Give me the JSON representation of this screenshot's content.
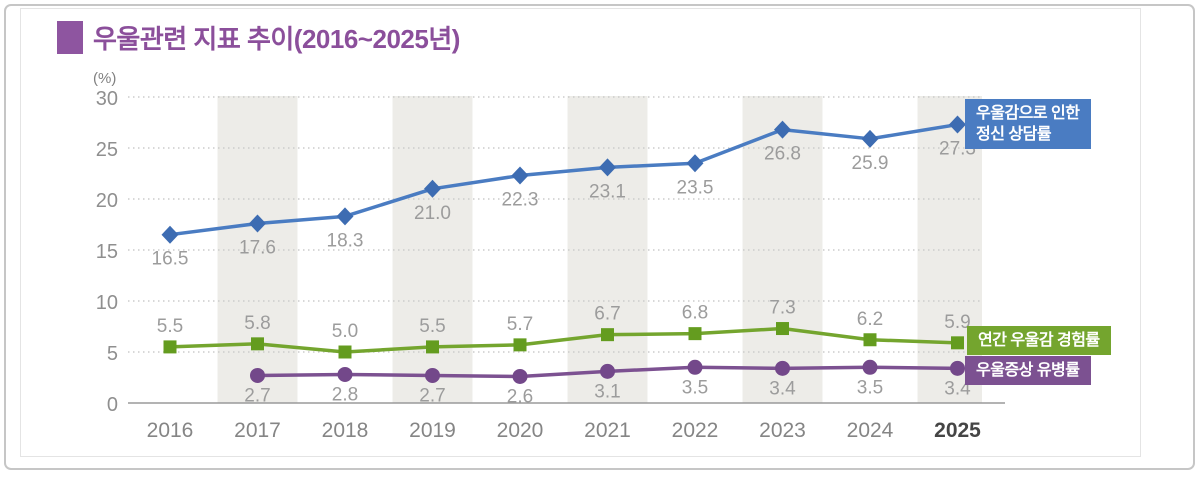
{
  "title": {
    "text": "우울관련 지표 추이(2016~2025년)"
  },
  "axis": {
    "unit_label": "(%)",
    "x_labels": [
      "2016",
      "2017",
      "2018",
      "2019",
      "2020",
      "2021",
      "2022",
      "2023",
      "2024",
      "2025"
    ],
    "y_tick_labels": [
      "0",
      "5",
      "10",
      "15",
      "20",
      "25",
      "30"
    ]
  },
  "chart_data": {
    "type": "line",
    "title": "우울관련 지표 추이(2016~2025년)",
    "unit_label": "(%)",
    "categories": [
      "2016",
      "2017",
      "2018",
      "2019",
      "2020",
      "2021",
      "2022",
      "2023",
      "2024",
      "2025"
    ],
    "ylim": [
      0,
      30
    ],
    "yticks": [
      0,
      5,
      10,
      15,
      20,
      25,
      30
    ],
    "grid": "horizontal-dotted",
    "legend_position": "right-of-last-point",
    "background_bands_on": [
      "2017",
      "2019",
      "2021",
      "2023",
      "2025"
    ],
    "emphasized_x_label": "2025",
    "series": [
      {
        "name": "우울감으로 인한 정신 상담률",
        "legend_lines": [
          "우울감으로 인한",
          "정신 상담률"
        ],
        "color": "#4a7cc2",
        "marker_color": "#3d6cb2",
        "marker": "diamond",
        "value_label_position": "below",
        "values": [
          16.5,
          17.6,
          18.3,
          21.0,
          22.3,
          23.1,
          23.5,
          26.8,
          25.9,
          27.3
        ]
      },
      {
        "name": "연간 우울감 경험률",
        "legend_lines": [
          "연간 우울감 경험률"
        ],
        "color": "#74a52e",
        "marker_color": "#649c1f",
        "marker": "square",
        "value_label_position": "above",
        "values": [
          5.5,
          5.8,
          5.0,
          5.5,
          5.7,
          6.7,
          6.8,
          7.3,
          6.2,
          5.9
        ]
      },
      {
        "name": "우울증상 유병률",
        "legend_lines": [
          "우울증상 유병률"
        ],
        "color": "#7c5191",
        "marker_color": "#73488a",
        "marker": "circle",
        "value_label_position": "below",
        "values": [
          null,
          2.7,
          2.8,
          2.7,
          2.6,
          3.1,
          3.5,
          3.4,
          3.5,
          3.4
        ]
      }
    ],
    "style_colors": {
      "band": "#edece8",
      "gridline": "#cbcbcb",
      "axis_line": "#9a9a9a",
      "value_label": "#9c9c9c",
      "x_label": "#858585",
      "x_label_emphasis": "#454545",
      "y_label": "#8f8f8f"
    }
  }
}
